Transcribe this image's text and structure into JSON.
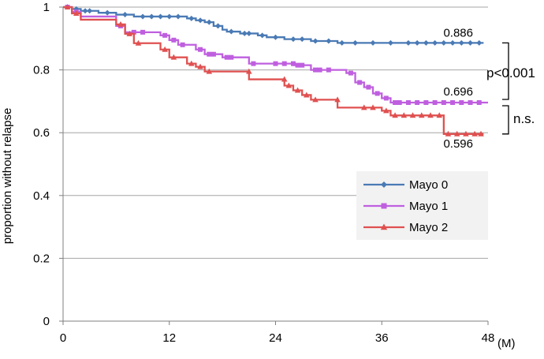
{
  "chart_data": {
    "type": "line",
    "subtype": "kaplan-meier step",
    "ylabel": "proportion without relapse",
    "x_unit": "(M)",
    "xlim": [
      0,
      48
    ],
    "ylim": [
      0,
      1
    ],
    "x_ticks": [
      "0",
      "12",
      "24",
      "36",
      "48"
    ],
    "y_ticks": [
      "0",
      "0.2",
      "0.4",
      "0.6",
      "0.8",
      "1"
    ],
    "grid": "horizontal",
    "legend_position": "right-middle",
    "series": [
      {
        "name": "Mayo 0",
        "color": "#4a7ab5",
        "marker": "diamond",
        "end_label": "0.886",
        "steps": [
          [
            0,
            1.0
          ],
          [
            1,
            0.994
          ],
          [
            2,
            0.988
          ],
          [
            4,
            0.982
          ],
          [
            6,
            0.976
          ],
          [
            8,
            0.97
          ],
          [
            14,
            0.964
          ],
          [
            15,
            0.958
          ],
          [
            16,
            0.952
          ],
          [
            17,
            0.94
          ],
          [
            18,
            0.928
          ],
          [
            18.5,
            0.922
          ],
          [
            20,
            0.916
          ],
          [
            22,
            0.91
          ],
          [
            23,
            0.904
          ],
          [
            25,
            0.898
          ],
          [
            28,
            0.892
          ],
          [
            31,
            0.886
          ],
          [
            47.5,
            0.886
          ]
        ],
        "censored": [
          [
            1.5,
            0.994
          ],
          [
            2.5,
            0.988
          ],
          [
            3,
            0.988
          ],
          [
            5,
            0.982
          ],
          [
            7,
            0.976
          ],
          [
            9,
            0.97
          ],
          [
            10,
            0.97
          ],
          [
            11,
            0.97
          ],
          [
            12,
            0.97
          ],
          [
            13,
            0.97
          ],
          [
            14.5,
            0.964
          ],
          [
            15.5,
            0.958
          ],
          [
            16.5,
            0.952
          ],
          [
            17.5,
            0.94
          ],
          [
            19,
            0.922
          ],
          [
            20.5,
            0.916
          ],
          [
            21,
            0.916
          ],
          [
            22.5,
            0.91
          ],
          [
            24,
            0.904
          ],
          [
            26,
            0.898
          ],
          [
            27,
            0.898
          ],
          [
            28.5,
            0.892
          ],
          [
            30,
            0.892
          ],
          [
            31.5,
            0.886
          ],
          [
            33,
            0.886
          ],
          [
            35,
            0.886
          ],
          [
            37,
            0.886
          ],
          [
            39,
            0.886
          ],
          [
            40,
            0.886
          ],
          [
            41,
            0.886
          ],
          [
            42,
            0.886
          ],
          [
            43,
            0.886
          ],
          [
            44,
            0.886
          ],
          [
            45,
            0.886
          ],
          [
            46,
            0.886
          ],
          [
            47,
            0.886
          ]
        ]
      },
      {
        "name": "Mayo 1",
        "color": "#bf5fdf",
        "marker": "square",
        "end_label": "0.696",
        "steps": [
          [
            0,
            1.0
          ],
          [
            1,
            0.985
          ],
          [
            2,
            0.97
          ],
          [
            6,
            0.94
          ],
          [
            7,
            0.92
          ],
          [
            11,
            0.91
          ],
          [
            12,
            0.895
          ],
          [
            13,
            0.88
          ],
          [
            15,
            0.865
          ],
          [
            16,
            0.85
          ],
          [
            18,
            0.84
          ],
          [
            21,
            0.82
          ],
          [
            26,
            0.815
          ],
          [
            28,
            0.8
          ],
          [
            32,
            0.79
          ],
          [
            33,
            0.76
          ],
          [
            34,
            0.745
          ],
          [
            35,
            0.725
          ],
          [
            36,
            0.71
          ],
          [
            37,
            0.696
          ],
          [
            48,
            0.696
          ]
        ],
        "censored": [
          [
            0.5,
            1.0
          ],
          [
            1.5,
            0.985
          ],
          [
            6.5,
            0.94
          ],
          [
            8,
            0.92
          ],
          [
            9,
            0.92
          ],
          [
            11.5,
            0.91
          ],
          [
            12.5,
            0.895
          ],
          [
            13.5,
            0.88
          ],
          [
            15.5,
            0.865
          ],
          [
            16.5,
            0.85
          ],
          [
            17,
            0.85
          ],
          [
            18.5,
            0.84
          ],
          [
            19,
            0.84
          ],
          [
            21.5,
            0.82
          ],
          [
            24,
            0.82
          ],
          [
            25,
            0.82
          ],
          [
            26,
            0.82
          ],
          [
            26.5,
            0.815
          ],
          [
            27,
            0.815
          ],
          [
            28.5,
            0.8
          ],
          [
            29,
            0.8
          ],
          [
            30,
            0.8
          ],
          [
            32.5,
            0.79
          ],
          [
            33.5,
            0.76
          ],
          [
            34.5,
            0.745
          ],
          [
            35.5,
            0.725
          ],
          [
            36.5,
            0.71
          ],
          [
            37.5,
            0.696
          ],
          [
            38,
            0.696
          ],
          [
            39,
            0.696
          ],
          [
            40,
            0.696
          ],
          [
            41,
            0.696
          ],
          [
            42,
            0.696
          ],
          [
            43,
            0.696
          ],
          [
            44,
            0.696
          ],
          [
            45,
            0.696
          ],
          [
            46,
            0.696
          ],
          [
            47,
            0.696
          ]
        ]
      },
      {
        "name": "Mayo 2",
        "color": "#e05050",
        "marker": "triangle",
        "end_label": "0.596",
        "steps": [
          [
            0,
            1.0
          ],
          [
            1,
            0.98
          ],
          [
            2,
            0.96
          ],
          [
            6,
            0.945
          ],
          [
            7,
            0.915
          ],
          [
            8,
            0.885
          ],
          [
            11,
            0.865
          ],
          [
            12,
            0.84
          ],
          [
            14,
            0.82
          ],
          [
            15,
            0.81
          ],
          [
            16,
            0.795
          ],
          [
            21,
            0.77
          ],
          [
            25,
            0.75
          ],
          [
            26,
            0.735
          ],
          [
            27,
            0.72
          ],
          [
            28,
            0.705
          ],
          [
            31,
            0.68
          ],
          [
            36,
            0.67
          ],
          [
            37,
            0.655
          ],
          [
            43,
            0.596
          ],
          [
            47.5,
            0.596
          ]
        ],
        "censored": [
          [
            0.5,
            1.0
          ],
          [
            1.5,
            0.98
          ],
          [
            6.5,
            0.945
          ],
          [
            7.5,
            0.915
          ],
          [
            8.5,
            0.885
          ],
          [
            11.5,
            0.865
          ],
          [
            12.5,
            0.84
          ],
          [
            14.5,
            0.82
          ],
          [
            15.5,
            0.81
          ],
          [
            16.5,
            0.795
          ],
          [
            21,
            0.795
          ],
          [
            25,
            0.77
          ],
          [
            25.5,
            0.75
          ],
          [
            26.5,
            0.735
          ],
          [
            27.5,
            0.72
          ],
          [
            28.5,
            0.705
          ],
          [
            31,
            0.705
          ],
          [
            34,
            0.68
          ],
          [
            35,
            0.68
          ],
          [
            36.5,
            0.67
          ],
          [
            37.5,
            0.655
          ],
          [
            38.5,
            0.655
          ],
          [
            39.5,
            0.655
          ],
          [
            40.5,
            0.655
          ],
          [
            41.5,
            0.655
          ],
          [
            42.5,
            0.655
          ],
          [
            43.5,
            0.596
          ],
          [
            44.5,
            0.596
          ],
          [
            45.5,
            0.596
          ],
          [
            46.5,
            0.596
          ],
          [
            47.2,
            0.596
          ]
        ]
      }
    ],
    "annotations": [
      {
        "text": "p<0.001",
        "between": [
          "Mayo 0",
          "Mayo 1"
        ]
      },
      {
        "text": "n.s.",
        "between": [
          "Mayo 1",
          "Mayo 2"
        ]
      }
    ]
  }
}
